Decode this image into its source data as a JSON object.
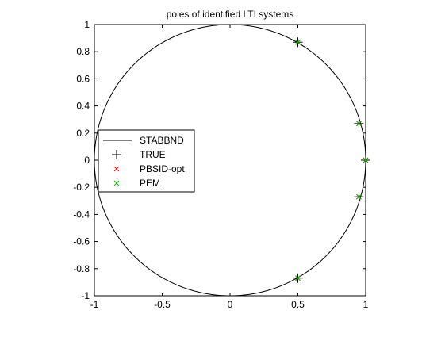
{
  "chart_data": {
    "type": "scatter",
    "title": "poles of identified LTI systems",
    "xlabel": "",
    "ylabel": "",
    "xlim": [
      -1,
      1
    ],
    "ylim": [
      -1,
      1
    ],
    "xticks": [
      -1,
      -0.5,
      0,
      0.5,
      1
    ],
    "xtick_labels": [
      "-1",
      "-0.5",
      "0",
      "0.5",
      "1"
    ],
    "yticks": [
      1,
      0.8,
      0.6,
      0.4,
      0.2,
      0,
      -0.2,
      -0.4,
      -0.6,
      -0.8,
      -1
    ],
    "ytick_labels": [
      "1",
      "0.8",
      "0.6",
      "0.4",
      "0.2",
      "0",
      "-0.2",
      "-0.4",
      "-0.6",
      "-0.8",
      "-1"
    ],
    "grid": false,
    "legend_position": "left",
    "series": [
      {
        "name": "STABBND",
        "kind": "line",
        "color": "#000000",
        "shape": "unit-circle"
      },
      {
        "name": "TRUE",
        "kind": "marker",
        "marker": "+",
        "color": "#000000",
        "x": [
          0.5,
          0.5,
          0.95,
          0.95,
          1.0
        ],
        "y": [
          0.87,
          -0.87,
          0.27,
          -0.27,
          0.0
        ]
      },
      {
        "name": "PBSID-opt",
        "kind": "marker",
        "marker": "x",
        "color": "#ff0000",
        "x": [
          0.5,
          0.5,
          0.95,
          0.95,
          1.0
        ],
        "y": [
          0.87,
          -0.87,
          0.27,
          -0.27,
          0.0
        ]
      },
      {
        "name": "PEM",
        "kind": "marker",
        "marker": "x",
        "color": "#00bb00",
        "x": [
          0.5,
          0.5,
          0.95,
          0.95,
          1.0
        ],
        "y": [
          0.87,
          -0.87,
          0.27,
          -0.27,
          0.0
        ]
      }
    ]
  }
}
